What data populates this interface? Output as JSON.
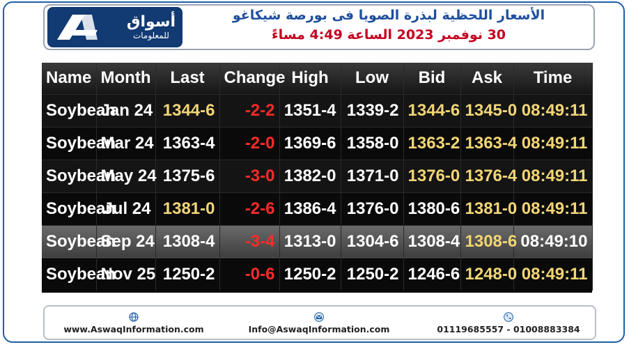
{
  "logo": {
    "arabic_name": "أسواق",
    "arabic_subtitle": "للمعلومات"
  },
  "title": {
    "line1": "الأسعار اللحظية لبذرة الصويا فى بورصة شيكاغو",
    "line2": "30 نوفمبر 2023 الساعة 4:49 مساءً"
  },
  "table": {
    "headers": [
      "Name",
      "Month",
      "Last",
      "Change",
      "High",
      "Low",
      "Bid",
      "Ask",
      "Time"
    ],
    "rows": [
      {
        "name": "Soybean",
        "month": "Jan 24",
        "last": "1344-6",
        "change": "-2-2",
        "high": "1351-4",
        "low": "1339-2",
        "bid": "1344-6",
        "ask": "1345-0",
        "time": "08:49:11"
      },
      {
        "name": "Soybean",
        "month": "Mar 24",
        "last": "1363-4",
        "change": "-2-0",
        "high": "1369-6",
        "low": "1358-0",
        "bid": "1363-2",
        "ask": "1363-4",
        "time": "08:49:11"
      },
      {
        "name": "Soybean",
        "month": "May 24",
        "last": "1375-6",
        "change": "-3-0",
        "high": "1382-0",
        "low": "1371-0",
        "bid": "1376-0",
        "ask": "1376-4",
        "time": "08:49:11"
      },
      {
        "name": "Soybean",
        "month": "Jul 24",
        "last": "1381-0",
        "change": "-2-6",
        "high": "1386-4",
        "low": "1376-0",
        "bid": "1380-6",
        "ask": "1381-0",
        "time": "08:49:11"
      },
      {
        "name": "Soybean",
        "month": "Sep 24",
        "last": "1308-4",
        "change": "-3-4",
        "high": "1313-0",
        "low": "1304-6",
        "bid": "1308-4",
        "ask": "1308-6",
        "time": "08:49:10"
      },
      {
        "name": "Soybean",
        "month": "Nov 25",
        "last": "1250-2",
        "change": "-0-6",
        "high": "1250-2",
        "low": "1250-2",
        "bid": "1246-6",
        "ask": "1248-0",
        "time": "08:49:11"
      }
    ]
  },
  "footer": {
    "website": "www.AswaqInformation.com",
    "email": "Info@AswaqInformation.com",
    "phones": "01119685557 - 01008883384"
  },
  "colors": {
    "brand_navy": "#123a73",
    "title_blue": "#1f4f9e",
    "title_red": "#c4001f",
    "value_yellow": "#f2d675",
    "change_red": "#ff2a2a"
  }
}
